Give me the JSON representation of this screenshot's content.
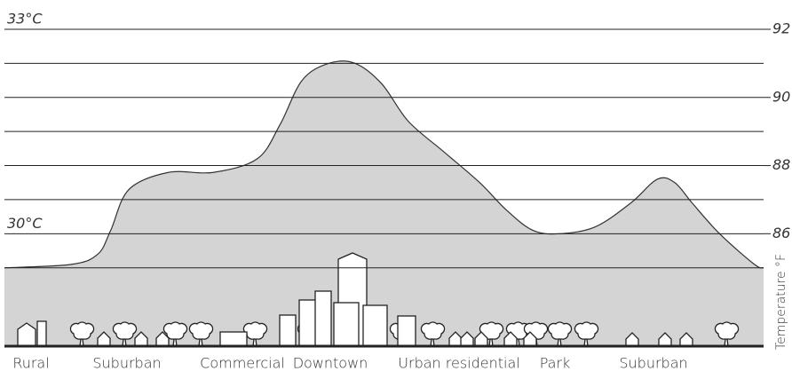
{
  "chart_data": {
    "type": "area",
    "x": [
      0,
      8.8,
      12.3,
      14,
      16.4,
      21.6,
      27.5,
      33.3,
      36.3,
      39.2,
      42.7,
      46.2,
      49.7,
      53.2,
      57.9,
      62.6,
      66.1,
      69.6,
      73.1,
      77.8,
      82.5,
      86,
      88.3,
      90.6,
      94.2,
      98.8,
      100
    ],
    "values": [
      85.0,
      85.1,
      85.4,
      86.1,
      87.3,
      87.8,
      87.8,
      88.2,
      89.2,
      90.5,
      91.0,
      91.0,
      90.4,
      89.3,
      88.4,
      87.5,
      86.7,
      86.1,
      86.0,
      86.2,
      86.9,
      87.6,
      87.5,
      86.9,
      86.0,
      85.1,
      85.0
    ],
    "color": "#d4d4d4",
    "xlim": [
      0,
      100
    ],
    "ylim": [
      82.7,
      92
    ],
    "yticks": [
      92,
      90,
      88,
      86
    ],
    "minor_yticks": [
      91,
      89,
      87,
      85
    ],
    "celsius_labels": [
      {
        "value": 92,
        "label": "33°C"
      },
      {
        "value": 86,
        "label": "30°C"
      }
    ],
    "y_axis_label": "Temperature °F",
    "categories": [
      "Rural",
      "Suburban",
      "Commercial",
      "Downtown",
      "Urban residential",
      "Park",
      "Suburban"
    ],
    "grid": true
  }
}
